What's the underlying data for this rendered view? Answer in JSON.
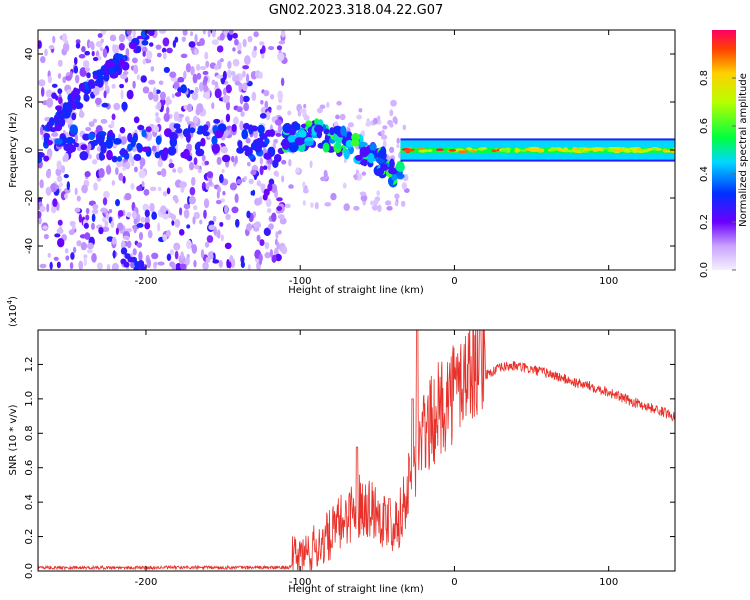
{
  "title": "GN02.2023.318.04.22.G07",
  "colors": {
    "snr_line": "#e8312a",
    "axes": "#000000",
    "background": "#ffffff"
  },
  "chart_data": [
    {
      "type": "heatmap",
      "xlabel": "Height of straight line (km)",
      "ylabel": "Frequency (Hz)",
      "xlim": [
        -270,
        143
      ],
      "ylim": [
        -50,
        50
      ],
      "x_ticks": [
        -200,
        -100,
        0,
        100
      ],
      "y_ticks": [
        -40,
        -20,
        0,
        20,
        40
      ],
      "x_tick_labels": [
        "-200",
        "-100",
        "0",
        "100"
      ],
      "y_tick_labels": [
        "-40",
        "-20",
        "0",
        "20",
        "40"
      ],
      "colorbar": {
        "label": "Normalized spectral amplitude",
        "range": [
          0,
          1
        ],
        "ticks": [
          0.0,
          0.2,
          0.4,
          0.6,
          0.8
        ],
        "tick_labels": [
          "0.0",
          "0.2",
          "0.4",
          "0.6",
          "0.8"
        ],
        "colormap": "rainbow"
      },
      "features": {
        "noise_region_x": [
          -270,
          -110
        ],
        "sloped_trace": {
          "x": [
            -265,
            -250,
            -230,
            -210,
            -195
          ],
          "y": [
            5,
            18,
            30,
            40,
            50
          ]
        },
        "sloped_trace_lower": {
          "x": [
            -215,
            -200
          ],
          "y": [
            -45,
            -50
          ]
        },
        "transition_region_x": [
          -110,
          -35
        ],
        "transition_trace": {
          "x": [
            -110,
            -90,
            -70,
            -55,
            -45,
            -38
          ],
          "y": [
            4,
            7,
            3,
            -2,
            -6,
            -10
          ]
        },
        "carrier_line": {
          "x": [
            -35,
            143
          ],
          "y": 0,
          "halfwidth_hz": 4
        }
      }
    },
    {
      "type": "line",
      "xlabel": "Height of straight line (km)",
      "ylabel": "SNR (10 * v/v)",
      "ylabel_multiplier": "(x10",
      "ylabel_multiplier_exp": "4",
      "ylabel_multiplier_close": ")",
      "xlim": [
        -270,
        143
      ],
      "ylim": [
        0,
        1.4
      ],
      "x_ticks": [
        -200,
        -100,
        0,
        100
      ],
      "y_ticks": [
        0.0,
        0.2,
        0.4,
        0.6,
        0.8,
        1.0,
        1.2
      ],
      "x_tick_labels": [
        "-200",
        "-100",
        "0",
        "100"
      ],
      "y_tick_labels": [
        "0.0",
        "0.2",
        "0.4",
        "0.6",
        "0.8",
        "1.0",
        "1.2"
      ],
      "series": [
        {
          "x": [
            -270,
            -200,
            -150,
            -110,
            -100,
            -90,
            -80,
            -70,
            -60,
            -50,
            -45,
            -40,
            -35,
            -30,
            -25,
            -22,
            -20,
            -15,
            -10,
            -5,
            0,
            5,
            10,
            15,
            20,
            25,
            30,
            35,
            40,
            50,
            60,
            70,
            80,
            90,
            100,
            110,
            120,
            130,
            143
          ],
          "values": [
            0.02,
            0.02,
            0.02,
            0.02,
            0.03,
            0.08,
            0.15,
            0.25,
            0.32,
            0.28,
            0.22,
            0.2,
            0.25,
            0.4,
            0.55,
            0.65,
            0.68,
            0.75,
            0.82,
            0.88,
            0.93,
            0.98,
            1.05,
            1.1,
            1.14,
            1.16,
            1.18,
            1.19,
            1.19,
            1.17,
            1.15,
            1.12,
            1.09,
            1.07,
            1.04,
            1.0,
            0.97,
            0.94,
            0.9
          ]
        }
      ],
      "spikes": [
        {
          "x": -63,
          "values": 0.72
        },
        {
          "x": -42,
          "values": 0.42
        },
        {
          "x": -27,
          "values": 1.0
        },
        {
          "x": -24,
          "values": 1.4
        }
      ]
    }
  ]
}
